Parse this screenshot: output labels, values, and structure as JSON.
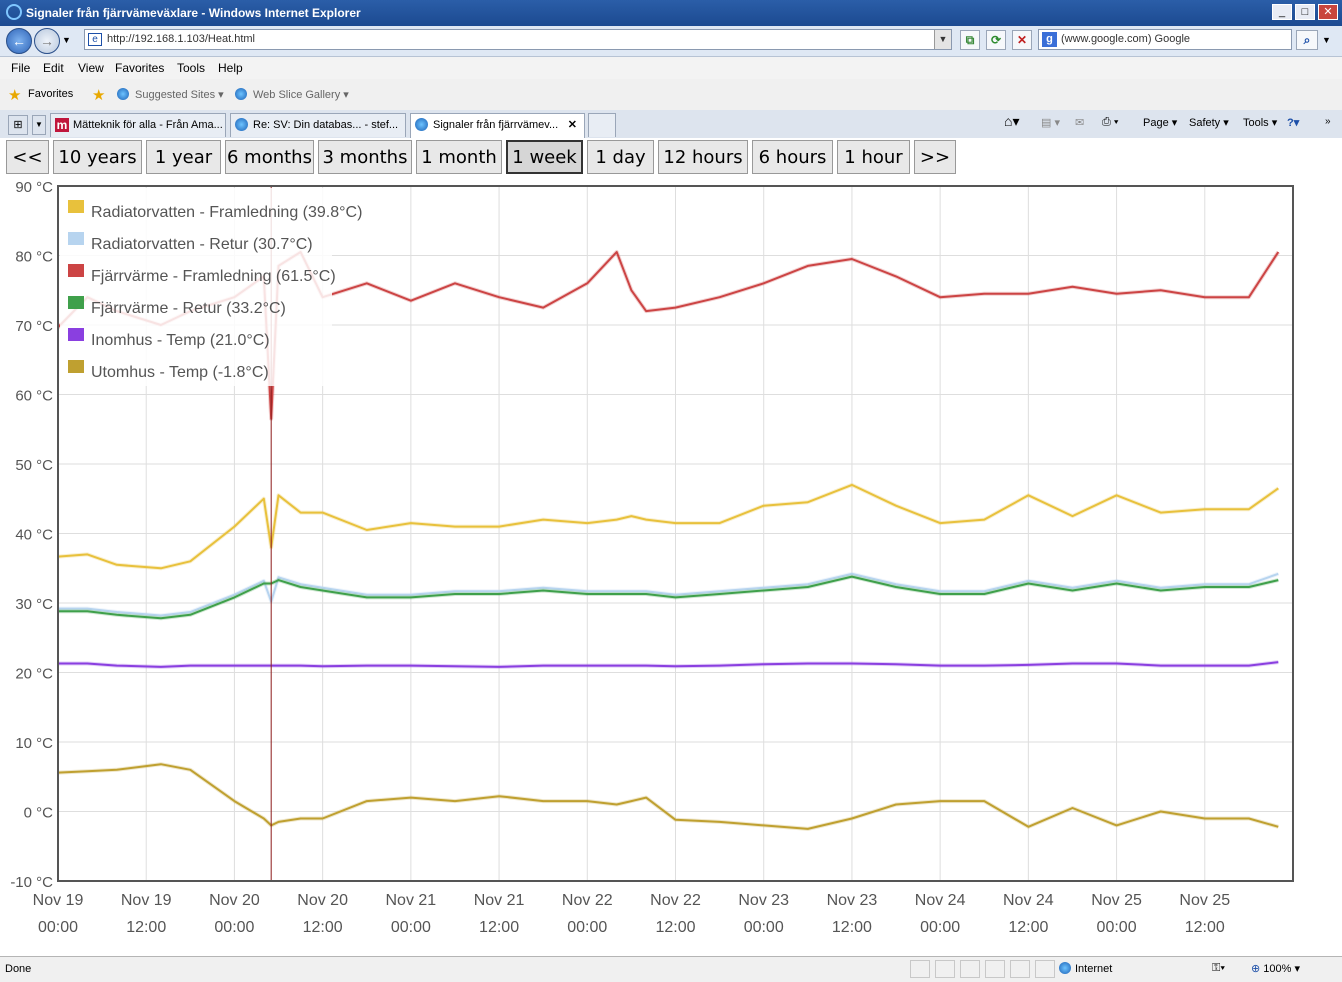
{
  "window": {
    "title": "Signaler från fjärrvämeväxlare - Windows Internet Explorer"
  },
  "address": {
    "url": "http://192.168.1.103/Heat.html",
    "search_placeholder": "(www.google.com) Google"
  },
  "menu": {
    "items": [
      "File",
      "Edit",
      "View",
      "Favorites",
      "Tools",
      "Help"
    ]
  },
  "favorites": {
    "favorites_label": "Favorites",
    "suggested": "Suggested Sites ▾",
    "webslice": "Web Slice Gallery ▾"
  },
  "tabs": [
    {
      "label": "Mätteknik för alla - Från Ama..."
    },
    {
      "label": "Re: SV: Din databas... - stef..."
    },
    {
      "label": "Signaler från fjärrvämev..."
    }
  ],
  "commandbar": {
    "page": "Page ▾",
    "safety": "Safety ▾",
    "tools": "Tools ▾"
  },
  "range_buttons": [
    "<<",
    "10 years",
    "1 year",
    "6 months",
    "3 months",
    "1 month",
    "1 week",
    "1 day",
    "12 hours",
    "6 hours",
    "1 hour",
    ">>"
  ],
  "selected_range": "1 week",
  "chart_data": {
    "type": "line",
    "ylim": [
      -10,
      90
    ],
    "y_ticks": [
      "-10 °C",
      "0 °C",
      "10 °C",
      "20 °C",
      "30 °C",
      "40 °C",
      "50 °C",
      "60 °C",
      "70 °C",
      "80 °C",
      "90 °C"
    ],
    "x_ticks": [
      [
        "Nov 19",
        "00:00"
      ],
      [
        "Nov 19",
        "12:00"
      ],
      [
        "Nov 20",
        "00:00"
      ],
      [
        "Nov 20",
        "12:00"
      ],
      [
        "Nov 21",
        "00:00"
      ],
      [
        "Nov 21",
        "12:00"
      ],
      [
        "Nov 22",
        "00:00"
      ],
      [
        "Nov 22",
        "12:00"
      ],
      [
        "Nov 23",
        "00:00"
      ],
      [
        "Nov 23",
        "12:00"
      ],
      [
        "Nov 24",
        "00:00"
      ],
      [
        "Nov 24",
        "12:00"
      ],
      [
        "Nov 25",
        "00:00"
      ],
      [
        "Nov 25",
        "12:00"
      ]
    ],
    "x": [
      -2,
      4,
      8,
      14,
      18,
      24,
      28,
      29,
      30,
      33,
      36,
      42,
      48,
      54,
      60,
      66,
      72,
      76,
      78,
      80,
      84,
      90,
      96,
      102,
      108,
      114,
      120,
      126,
      132,
      138,
      144,
      150,
      156,
      162,
      166
    ],
    "cursor_x": 29,
    "grid": true,
    "legend_position": "top-left",
    "series": [
      {
        "name": "Radiatorvatten - Framledning (39.8°C)",
        "color": "#e8c13c",
        "values": [
          36.5,
          37,
          35.5,
          35,
          36,
          41,
          45,
          38,
          45.5,
          43,
          43,
          40.5,
          41.5,
          41,
          41,
          42,
          41.5,
          42,
          42.5,
          42,
          41.5,
          41.5,
          44,
          44.5,
          47,
          44,
          41.5,
          42,
          45.5,
          42.5,
          45.5,
          43,
          43.5,
          43.5,
          46.5
        ]
      },
      {
        "name": "Radiatorvatten - Retur (30.7°C)",
        "color": "#b7d4ef",
        "values": [
          29.2,
          29.2,
          28.7,
          28.2,
          28.7,
          31.2,
          33.2,
          30.2,
          33.7,
          32.7,
          32.2,
          31.2,
          31.2,
          31.7,
          31.7,
          32.2,
          31.7,
          31.7,
          31.7,
          31.7,
          31.2,
          31.7,
          32.2,
          32.7,
          34.2,
          32.7,
          31.7,
          31.7,
          33.2,
          32.2,
          33.2,
          32.2,
          32.7,
          32.7,
          34.2
        ]
      },
      {
        "name": "Fjärrvärme - Framledning (61.5°C)",
        "color": "#cc4444",
        "values": [
          67.5,
          74,
          72,
          70,
          72,
          74,
          77,
          56.5,
          78.5,
          80.5,
          74,
          76,
          73.5,
          76,
          74,
          72.5,
          76,
          80.5,
          75,
          72,
          72.5,
          74,
          76,
          78.5,
          79.5,
          77,
          74,
          74.5,
          74.5,
          75.5,
          74.5,
          75,
          74,
          74,
          80.5
        ]
      },
      {
        "name": "Fjärrvärme - Retur (33.2°C)",
        "color": "#3fa04b",
        "values": [
          28.8,
          28.8,
          28.3,
          27.8,
          28.3,
          30.8,
          32.8,
          32.8,
          33.3,
          32.3,
          31.8,
          30.8,
          30.8,
          31.3,
          31.3,
          31.8,
          31.3,
          31.3,
          31.3,
          31.3,
          30.8,
          31.3,
          31.8,
          32.3,
          33.8,
          32.3,
          31.3,
          31.3,
          32.8,
          31.8,
          32.8,
          31.8,
          32.3,
          32.3,
          33.3
        ]
      },
      {
        "name": "Inomhus - Temp (21.0°C)",
        "color": "#8a3fe0",
        "values": [
          21.3,
          21.3,
          21,
          20.8,
          21,
          21,
          21,
          21,
          21,
          21,
          20.9,
          21,
          21,
          20.9,
          20.8,
          21,
          21,
          21,
          21,
          21,
          20.9,
          21,
          21.2,
          21.3,
          21.3,
          21.2,
          21,
          21,
          21.1,
          21.3,
          21.3,
          21,
          21,
          21,
          21.5
        ]
      },
      {
        "name": "Utomhus - Temp (-1.8°C)",
        "color": "#bfa030",
        "values": [
          5.5,
          5.8,
          6,
          6.8,
          6,
          1.5,
          -1,
          -2,
          -1.5,
          -1,
          -1,
          1.5,
          2,
          1.5,
          2.2,
          1.5,
          1.5,
          1,
          1.5,
          2,
          -1.2,
          -1.5,
          -2,
          -2.5,
          -1,
          1,
          1.5,
          1.5,
          -2.2,
          0.5,
          -2,
          0,
          -1,
          -1,
          -2.2
        ]
      }
    ]
  },
  "status": {
    "done": "Done",
    "zone": "Internet",
    "zoom": "100%"
  }
}
